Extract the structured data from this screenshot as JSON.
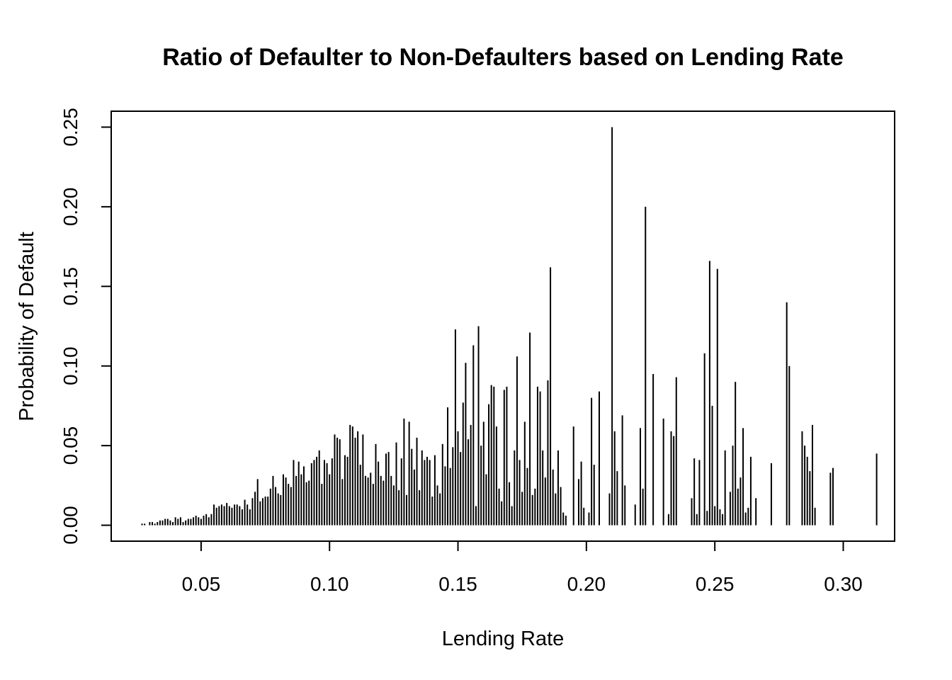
{
  "chart_data": {
    "type": "bar",
    "plot_style": "histogram-spikes",
    "title": "Ratio of Defaulter to Non-Defaulters based on Lending Rate",
    "xlabel": "Lending Rate",
    "ylabel": "Probability of Default",
    "xlim": [
      0.015,
      0.32
    ],
    "ylim": [
      -0.01,
      0.26
    ],
    "x_ticks": [
      0.05,
      0.1,
      0.15,
      0.2,
      0.25,
      0.3
    ],
    "x_tick_labels": [
      "0.05",
      "0.10",
      "0.15",
      "0.20",
      "0.25",
      "0.30"
    ],
    "y_ticks": [
      0.0,
      0.05,
      0.1,
      0.15,
      0.2,
      0.25
    ],
    "y_tick_labels": [
      "0.00",
      "0.05",
      "0.10",
      "0.15",
      "0.20",
      "0.25"
    ],
    "grid": false,
    "legend": "none",
    "color": "#000000",
    "points": [
      [
        0.027,
        0.001
      ],
      [
        0.028,
        0.001
      ],
      [
        0.03,
        0.002
      ],
      [
        0.031,
        0.002
      ],
      [
        0.032,
        0.001
      ],
      [
        0.033,
        0.002
      ],
      [
        0.034,
        0.003
      ],
      [
        0.035,
        0.003
      ],
      [
        0.036,
        0.004
      ],
      [
        0.037,
        0.004
      ],
      [
        0.038,
        0.003
      ],
      [
        0.039,
        0.002
      ],
      [
        0.04,
        0.005
      ],
      [
        0.041,
        0.004
      ],
      [
        0.042,
        0.005
      ],
      [
        0.043,
        0.002
      ],
      [
        0.044,
        0.003
      ],
      [
        0.045,
        0.004
      ],
      [
        0.046,
        0.004
      ],
      [
        0.047,
        0.005
      ],
      [
        0.048,
        0.006
      ],
      [
        0.049,
        0.005
      ],
      [
        0.05,
        0.004
      ],
      [
        0.051,
        0.006
      ],
      [
        0.052,
        0.007
      ],
      [
        0.053,
        0.005
      ],
      [
        0.054,
        0.007
      ],
      [
        0.055,
        0.013
      ],
      [
        0.056,
        0.011
      ],
      [
        0.057,
        0.012
      ],
      [
        0.058,
        0.013
      ],
      [
        0.059,
        0.012
      ],
      [
        0.06,
        0.014
      ],
      [
        0.061,
        0.012
      ],
      [
        0.062,
        0.011
      ],
      [
        0.063,
        0.013
      ],
      [
        0.064,
        0.013
      ],
      [
        0.065,
        0.012
      ],
      [
        0.066,
        0.01
      ],
      [
        0.067,
        0.016
      ],
      [
        0.068,
        0.013
      ],
      [
        0.069,
        0.01
      ],
      [
        0.07,
        0.017
      ],
      [
        0.071,
        0.021
      ],
      [
        0.072,
        0.029
      ],
      [
        0.073,
        0.015
      ],
      [
        0.074,
        0.017
      ],
      [
        0.075,
        0.018
      ],
      [
        0.076,
        0.018
      ],
      [
        0.077,
        0.023
      ],
      [
        0.078,
        0.031
      ],
      [
        0.079,
        0.024
      ],
      [
        0.08,
        0.02
      ],
      [
        0.081,
        0.019
      ],
      [
        0.082,
        0.032
      ],
      [
        0.083,
        0.03
      ],
      [
        0.084,
        0.026
      ],
      [
        0.085,
        0.024
      ],
      [
        0.086,
        0.041
      ],
      [
        0.087,
        0.031
      ],
      [
        0.088,
        0.04
      ],
      [
        0.089,
        0.032
      ],
      [
        0.09,
        0.037
      ],
      [
        0.091,
        0.027
      ],
      [
        0.092,
        0.028
      ],
      [
        0.093,
        0.039
      ],
      [
        0.094,
        0.041
      ],
      [
        0.095,
        0.043
      ],
      [
        0.096,
        0.047
      ],
      [
        0.097,
        0.026
      ],
      [
        0.098,
        0.041
      ],
      [
        0.099,
        0.039
      ],
      [
        0.1,
        0.032
      ],
      [
        0.101,
        0.042
      ],
      [
        0.102,
        0.057
      ],
      [
        0.103,
        0.055
      ],
      [
        0.104,
        0.054
      ],
      [
        0.105,
        0.029
      ],
      [
        0.106,
        0.044
      ],
      [
        0.107,
        0.043
      ],
      [
        0.108,
        0.063
      ],
      [
        0.109,
        0.062
      ],
      [
        0.11,
        0.055
      ],
      [
        0.111,
        0.059
      ],
      [
        0.112,
        0.038
      ],
      [
        0.113,
        0.057
      ],
      [
        0.114,
        0.031
      ],
      [
        0.115,
        0.03
      ],
      [
        0.116,
        0.033
      ],
      [
        0.117,
        0.026
      ],
      [
        0.118,
        0.051
      ],
      [
        0.119,
        0.04
      ],
      [
        0.12,
        0.031
      ],
      [
        0.121,
        0.028
      ],
      [
        0.122,
        0.045
      ],
      [
        0.123,
        0.046
      ],
      [
        0.124,
        0.031
      ],
      [
        0.125,
        0.025
      ],
      [
        0.126,
        0.052
      ],
      [
        0.127,
        0.022
      ],
      [
        0.128,
        0.042
      ],
      [
        0.129,
        0.067
      ],
      [
        0.13,
        0.019
      ],
      [
        0.131,
        0.065
      ],
      [
        0.132,
        0.048
      ],
      [
        0.133,
        0.035
      ],
      [
        0.134,
        0.055
      ],
      [
        0.135,
        0.022
      ],
      [
        0.136,
        0.047
      ],
      [
        0.137,
        0.041
      ],
      [
        0.138,
        0.043
      ],
      [
        0.139,
        0.041
      ],
      [
        0.14,
        0.018
      ],
      [
        0.141,
        0.044
      ],
      [
        0.142,
        0.025
      ],
      [
        0.143,
        0.02
      ],
      [
        0.144,
        0.051
      ],
      [
        0.145,
        0.037
      ],
      [
        0.146,
        0.074
      ],
      [
        0.147,
        0.036
      ],
      [
        0.148,
        0.049
      ],
      [
        0.149,
        0.123
      ],
      [
        0.15,
        0.059
      ],
      [
        0.151,
        0.046
      ],
      [
        0.152,
        0.077
      ],
      [
        0.153,
        0.102
      ],
      [
        0.154,
        0.054
      ],
      [
        0.155,
        0.063
      ],
      [
        0.156,
        0.113
      ],
      [
        0.157,
        0.012
      ],
      [
        0.158,
        0.125
      ],
      [
        0.159,
        0.05
      ],
      [
        0.16,
        0.065
      ],
      [
        0.161,
        0.032
      ],
      [
        0.162,
        0.076
      ],
      [
        0.163,
        0.088
      ],
      [
        0.164,
        0.087
      ],
      [
        0.165,
        0.062
      ],
      [
        0.166,
        0.023
      ],
      [
        0.167,
        0.015
      ],
      [
        0.168,
        0.085
      ],
      [
        0.169,
        0.087
      ],
      [
        0.17,
        0.027
      ],
      [
        0.171,
        0.012
      ],
      [
        0.172,
        0.047
      ],
      [
        0.173,
        0.106
      ],
      [
        0.174,
        0.041
      ],
      [
        0.175,
        0.021
      ],
      [
        0.176,
        0.065
      ],
      [
        0.177,
        0.036
      ],
      [
        0.178,
        0.121
      ],
      [
        0.179,
        0.019
      ],
      [
        0.18,
        0.023
      ],
      [
        0.181,
        0.087
      ],
      [
        0.182,
        0.084
      ],
      [
        0.183,
        0.047
      ],
      [
        0.184,
        0.03
      ],
      [
        0.185,
        0.091
      ],
      [
        0.186,
        0.162
      ],
      [
        0.187,
        0.035
      ],
      [
        0.188,
        0.02
      ],
      [
        0.189,
        0.047
      ],
      [
        0.19,
        0.024
      ],
      [
        0.191,
        0.008
      ],
      [
        0.192,
        0.006
      ],
      [
        0.195,
        0.062
      ],
      [
        0.197,
        0.029
      ],
      [
        0.198,
        0.04
      ],
      [
        0.199,
        0.011
      ],
      [
        0.201,
        0.008
      ],
      [
        0.202,
        0.08
      ],
      [
        0.203,
        0.038
      ],
      [
        0.205,
        0.084
      ],
      [
        0.209,
        0.02
      ],
      [
        0.21,
        0.25
      ],
      [
        0.211,
        0.059
      ],
      [
        0.212,
        0.034
      ],
      [
        0.214,
        0.069
      ],
      [
        0.215,
        0.025
      ],
      [
        0.219,
        0.013
      ],
      [
        0.221,
        0.061
      ],
      [
        0.222,
        0.023
      ],
      [
        0.223,
        0.2
      ],
      [
        0.226,
        0.095
      ],
      [
        0.23,
        0.067
      ],
      [
        0.232,
        0.007
      ],
      [
        0.233,
        0.059
      ],
      [
        0.234,
        0.056
      ],
      [
        0.235,
        0.093
      ],
      [
        0.241,
        0.017
      ],
      [
        0.242,
        0.042
      ],
      [
        0.243,
        0.007
      ],
      [
        0.244,
        0.041
      ],
      [
        0.246,
        0.108
      ],
      [
        0.247,
        0.009
      ],
      [
        0.248,
        0.166
      ],
      [
        0.249,
        0.075
      ],
      [
        0.25,
        0.012
      ],
      [
        0.251,
        0.161
      ],
      [
        0.252,
        0.01
      ],
      [
        0.253,
        0.007
      ],
      [
        0.254,
        0.047
      ],
      [
        0.256,
        0.021
      ],
      [
        0.257,
        0.05
      ],
      [
        0.258,
        0.09
      ],
      [
        0.259,
        0.023
      ],
      [
        0.26,
        0.03
      ],
      [
        0.261,
        0.061
      ],
      [
        0.262,
        0.008
      ],
      [
        0.263,
        0.011
      ],
      [
        0.264,
        0.043
      ],
      [
        0.266,
        0.017
      ],
      [
        0.272,
        0.039
      ],
      [
        0.278,
        0.14
      ],
      [
        0.279,
        0.1
      ],
      [
        0.284,
        0.059
      ],
      [
        0.285,
        0.05
      ],
      [
        0.286,
        0.043
      ],
      [
        0.287,
        0.034
      ],
      [
        0.288,
        0.063
      ],
      [
        0.289,
        0.011
      ],
      [
        0.295,
        0.033
      ],
      [
        0.296,
        0.036
      ],
      [
        0.313,
        0.045
      ]
    ]
  }
}
